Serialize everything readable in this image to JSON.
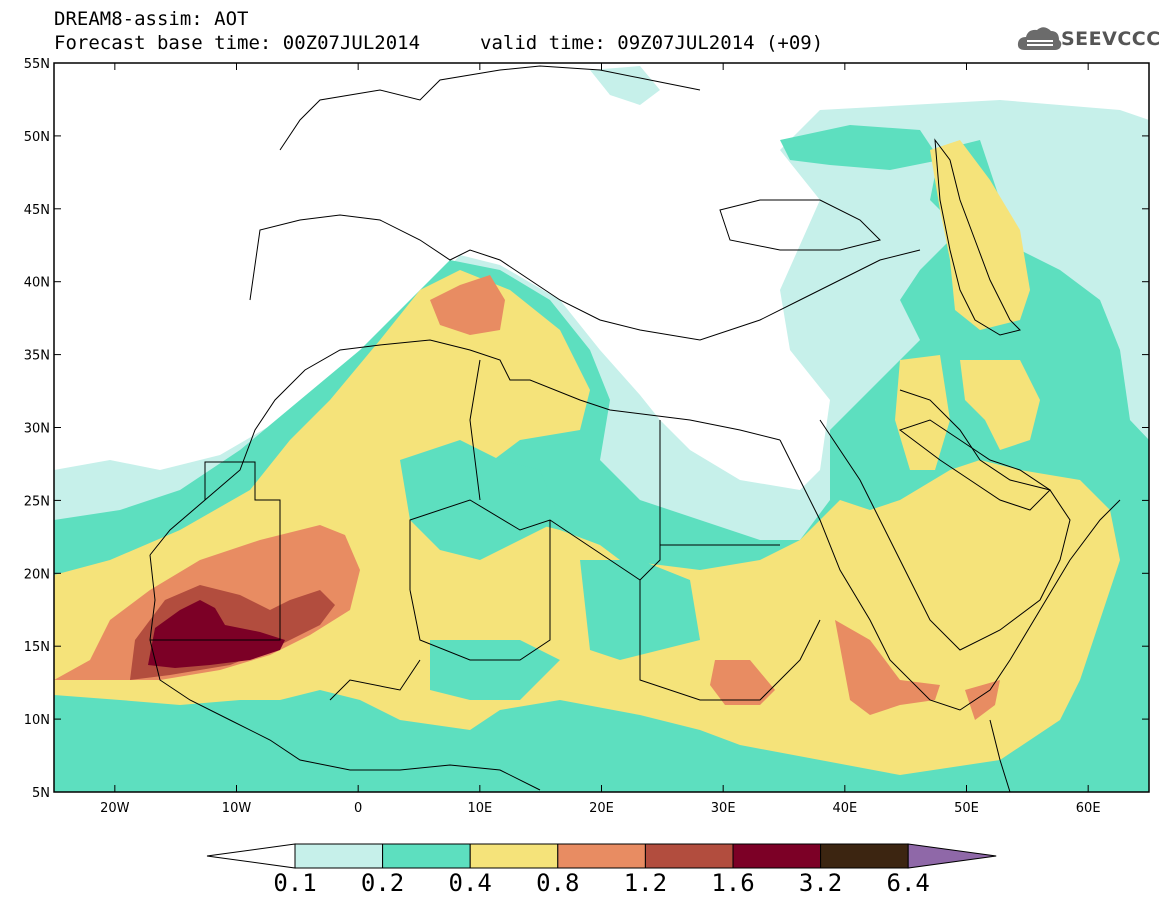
{
  "header": {
    "title": "DREAM8-assim: AOT",
    "forecast_base": "Forecast base time: 00Z07JUL2014",
    "valid_time": "valid time: 09Z07JUL2014 (+09)"
  },
  "logo": {
    "text": "SEEVCCC",
    "icon": "cloud-icon"
  },
  "map": {
    "lon_range": [
      -25,
      65
    ],
    "lat_range": [
      5,
      55
    ],
    "lat_ticks": [
      {
        "value": 55,
        "label": "55N"
      },
      {
        "value": 50,
        "label": "50N"
      },
      {
        "value": 45,
        "label": "45N"
      },
      {
        "value": 40,
        "label": "40N"
      },
      {
        "value": 35,
        "label": "35N"
      },
      {
        "value": 30,
        "label": "30N"
      },
      {
        "value": 25,
        "label": "25N"
      },
      {
        "value": 20,
        "label": "20N"
      },
      {
        "value": 15,
        "label": "15N"
      },
      {
        "value": 10,
        "label": "10N"
      },
      {
        "value": 5,
        "label": "5N"
      }
    ],
    "lon_ticks": [
      {
        "value": -20,
        "label": "20W"
      },
      {
        "value": -10,
        "label": "10W"
      },
      {
        "value": 0,
        "label": "0"
      },
      {
        "value": 10,
        "label": "10E"
      },
      {
        "value": 20,
        "label": "20E"
      },
      {
        "value": 30,
        "label": "30E"
      },
      {
        "value": 40,
        "label": "40E"
      },
      {
        "value": 50,
        "label": "50E"
      },
      {
        "value": 60,
        "label": "60E"
      }
    ]
  },
  "colorbar": {
    "colors": [
      "#c6f0ea",
      "#5ddfbf",
      "#f5e37a",
      "#e88c62",
      "#b24d3e",
      "#7c0026",
      "#3c2511"
    ],
    "under_color": "#ffffff",
    "over_color": "#8f68a8",
    "labels": [
      "0.1",
      "0.2",
      "0.4",
      "0.8",
      "1.2",
      "1.6",
      "3.2",
      "6.4"
    ]
  }
}
